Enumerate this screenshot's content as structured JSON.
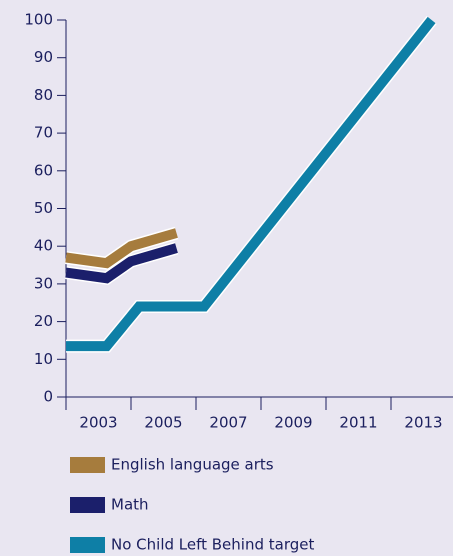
{
  "chart_data": {
    "type": "line",
    "series": [
      {
        "name": "English language arts",
        "color": "#a67c3d",
        "x": [
          2002,
          2003.25,
          2004,
          2005.4
        ],
        "values": [
          37,
          35.5,
          40,
          43.5
        ]
      },
      {
        "name": "Math",
        "color": "#1b1f6b",
        "x": [
          2002,
          2003.25,
          2004,
          2005.4
        ],
        "values": [
          33,
          31.5,
          36,
          39.5
        ]
      },
      {
        "name": "No Child Left Behind target",
        "color": "#0e7fa6",
        "x": [
          2002,
          2003.25,
          2004.25,
          2006.25,
          2013.25
        ],
        "values": [
          13.5,
          13.5,
          24,
          24,
          100
        ]
      }
    ],
    "xlim": [
      2002,
      2014
    ],
    "xticks": [
      2003,
      2005,
      2007,
      2009,
      2011,
      2013
    ],
    "x_minor_ticks": [
      2002,
      2004,
      2006,
      2008,
      2010,
      2012,
      2014
    ],
    "ylim": [
      0,
      100
    ],
    "yticks": [
      0,
      10,
      20,
      30,
      40,
      50,
      60,
      70,
      80,
      90,
      100
    ],
    "legend": "bottom"
  }
}
